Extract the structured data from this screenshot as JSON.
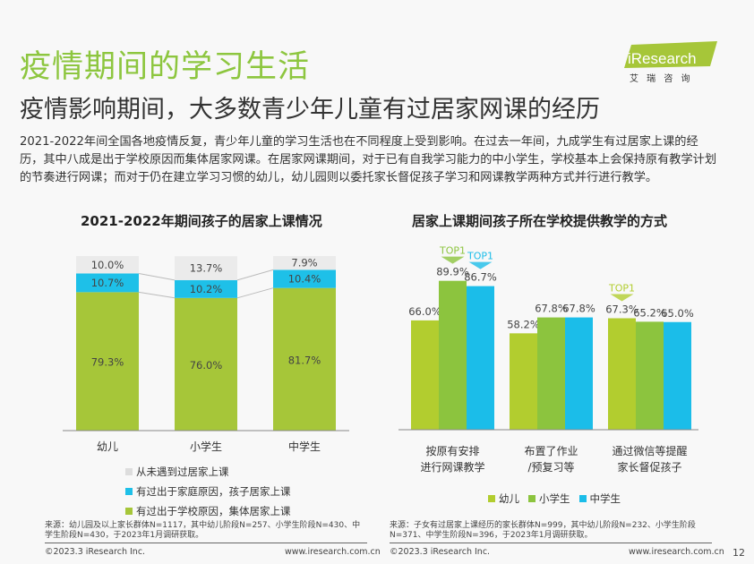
{
  "title": "疫情期间的学习生活",
  "subtitle": "疫情影响期间，大多数青少年儿童有过居家网课的经历",
  "body": "2021-2022年间全国各地疫情反复，青少年儿童的学习生活也在不同程度上受到影响。在过去一年间，九成学生有过居家上课的经历，其中八成是出于学校原因而集体居家网课。在居家网课期间，对于已有自我学习能力的中小学生，学校基本上会保持原有教学计划的节奏进行网课；而对于仍在建立学习习惯的幼儿，幼儿园则以委托家长督促孩子学习和网课教学两种方式并行进行教学。",
  "logo": {
    "text": "iResearch",
    "sub": "艾 瑞 咨 询"
  },
  "chart_data": [
    {
      "type": "bar",
      "stacked": true,
      "title": "2021-2022年期间孩子的居家上课情况",
      "categories": [
        "幼儿",
        "小学生",
        "中学生"
      ],
      "series": [
        {
          "name": "有过出于学校原因，集体居家上课",
          "color": "#a6c639",
          "values": [
            79.3,
            76.0,
            81.7
          ],
          "labels": [
            "79.3%",
            "76.0%",
            "81.7%"
          ]
        },
        {
          "name": "有过出于家庭原因，孩子居家上课",
          "color": "#1ec0e8",
          "values": [
            10.7,
            10.2,
            10.4
          ],
          "labels": [
            "10.7%",
            "10.2%",
            "10.4%"
          ]
        },
        {
          "name": "从未遇到过居家上课",
          "color": "#ebebeb",
          "values": [
            10.0,
            13.7,
            7.9
          ],
          "labels": [
            "10.0%",
            "13.7%",
            "7.9%"
          ]
        }
      ],
      "ylim": [
        0,
        100
      ],
      "legend_placement": "bottom"
    },
    {
      "type": "bar",
      "title": "居家上课期间孩子所在学校提供教学的方式",
      "categories": [
        [
          "按原有安排",
          "进行网课教学"
        ],
        [
          "布置了作业",
          "/预复习等"
        ],
        [
          "通过微信等提醒",
          "家长督促孩子"
        ]
      ],
      "series": [
        {
          "name": "幼儿",
          "color": "#b2cd2f",
          "values": [
            66.0,
            58.2,
            67.3
          ],
          "labels": [
            "66.0%",
            "58.2%",
            "67.3%"
          ]
        },
        {
          "name": "小学生",
          "color": "#8cc43e",
          "values": [
            89.9,
            67.8,
            65.2
          ],
          "labels": [
            "89.9%",
            "67.8%",
            "65.2%"
          ]
        },
        {
          "name": "中学生",
          "color": "#1bbde9",
          "values": [
            86.7,
            67.8,
            65.0
          ],
          "labels": [
            "86.7%",
            "67.8%",
            "65.0%"
          ]
        }
      ],
      "top1_label": "TOP1",
      "top1_marks": [
        {
          "category": 0,
          "series": 1
        },
        {
          "category": 0,
          "series": 2
        },
        {
          "category": 2,
          "series": 0
        }
      ],
      "ylim": [
        0,
        100
      ],
      "legend_placement": "bottom"
    }
  ],
  "sources": [
    "来源：幼儿园及以上家长群体N=1117，其中幼儿阶段N=257、小学生阶段N=430、中学生阶段N=430，于2023年1月调研获取。",
    "来源：子女有过居家上课经历的家长群体N=999，其中幼儿阶段N=232、小学生阶段N=371、中学生阶段N=396，于2023年1月调研获取。"
  ],
  "footer": {
    "copyright": "©2023.3 iResearch Inc.",
    "url": "www.iresearch.com.cn",
    "page": "12"
  }
}
